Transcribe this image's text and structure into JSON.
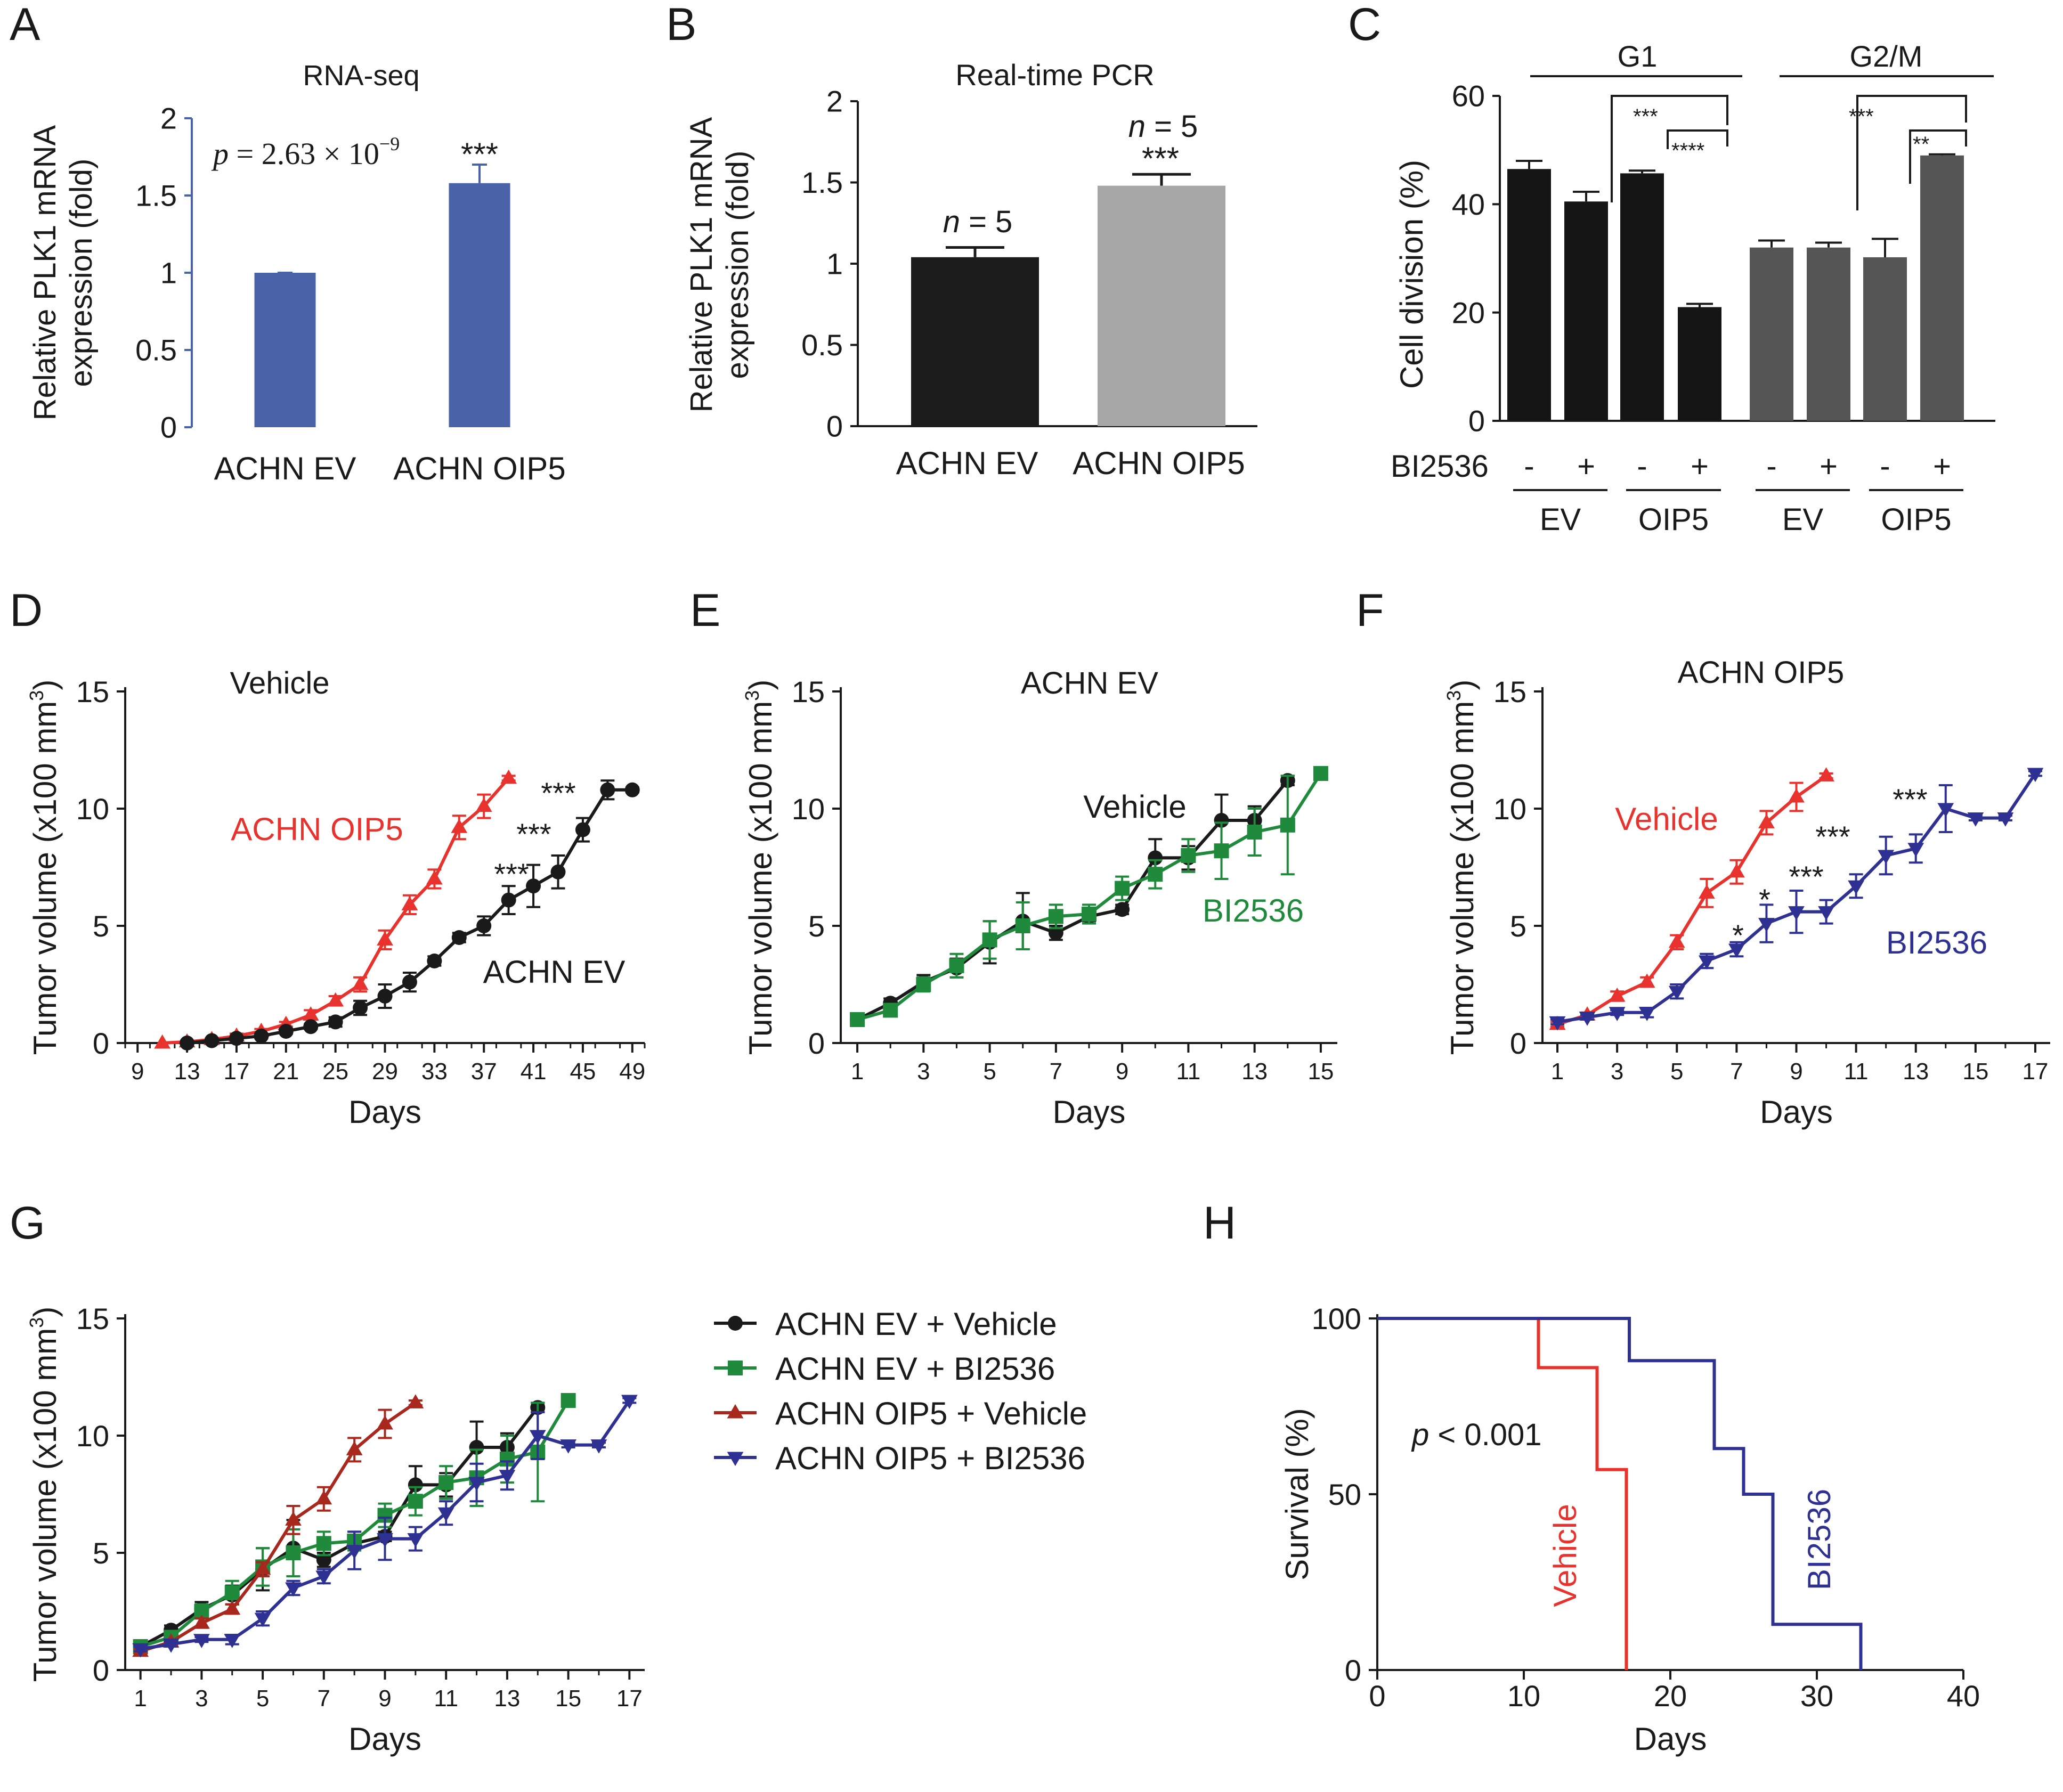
{
  "colors": {
    "blue_bar": "#4a62a8",
    "black_bar": "#1b1b1b",
    "gray_bar": "#a6a6a6",
    "g1_bar": "#151515",
    "g2m_bar": "#555555",
    "red": "#e8322d",
    "black": "#1a1a1a",
    "green": "#1f8a3c",
    "navy": "#2e3192",
    "darkred": "#a8281d",
    "blue_axis": "#4a62a8"
  },
  "chart_data": [
    {
      "panel": "A",
      "type": "bar",
      "title": "RNA-seq",
      "ylabel_line1": "Relative PLK1 mRNA",
      "ylabel_line2": "expression (fold)",
      "ylim": [
        0,
        2
      ],
      "yticks": [
        "0",
        "0.5",
        "1",
        "1.5",
        "2"
      ],
      "ytick_values": [
        0,
        0.5,
        1,
        1.5,
        2
      ],
      "categories": [
        "ACHN EV",
        "ACHN OIP5"
      ],
      "values": [
        1.0,
        1.58
      ],
      "errors": [
        0,
        0.12
      ],
      "annotations": {
        "stat": "***",
        "p_label": "p",
        "p_expr": " = 2.63 × 10",
        "p_exp": "−9"
      }
    },
    {
      "panel": "B",
      "type": "bar",
      "title": "Real-time PCR",
      "ylabel_line1": "Relative PLK1 mRNA",
      "ylabel_line2": "expression (fold)",
      "ylim": [
        0,
        2
      ],
      "yticks": [
        "0",
        "0.5",
        "1",
        "1.5",
        "2"
      ],
      "ytick_values": [
        0,
        0.5,
        1,
        1.5,
        2
      ],
      "categories": [
        "ACHN EV",
        "ACHN OIP5"
      ],
      "values": [
        1.04,
        1.48
      ],
      "errors": [
        0.06,
        0.07
      ],
      "annotations": {
        "n_label": "n",
        "n_expr": " = 5",
        "stat": "***"
      }
    },
    {
      "panel": "C",
      "type": "bar",
      "ylabel": "Cell division (%)",
      "ylim": [
        0,
        60
      ],
      "yticks": [
        "0",
        "20",
        "40",
        "60"
      ],
      "ytick_values": [
        0,
        20,
        40,
        60
      ],
      "groups": [
        "G1",
        "G2/M"
      ],
      "treatment_label": "BI2536",
      "signs": [
        "-",
        "+",
        "-",
        "+",
        "-",
        "+",
        "-",
        "+"
      ],
      "cell_lines": [
        "EV",
        "OIP5",
        "EV",
        "OIP5"
      ],
      "values": [
        46.5,
        40.5,
        45.7,
        21.0,
        32.0,
        32.0,
        30.2,
        49.0
      ],
      "errors": [
        1.5,
        1.8,
        0.5,
        0.6,
        1.3,
        0.9,
        3.4,
        0.2
      ],
      "sig_brackets": [
        "***",
        "****",
        "***",
        "**"
      ]
    },
    {
      "panel": "D",
      "type": "line",
      "title": "Vehicle",
      "xlabel": "Days",
      "ylabel": "Tumor volume (x100 mm",
      "ylabel_sup": "3",
      "ylabel_end": ")",
      "xlim": [
        8,
        50
      ],
      "ylim": [
        0,
        15
      ],
      "xticks": [
        "9",
        "13",
        "17",
        "21",
        "25",
        "29",
        "33",
        "37",
        "41",
        "45",
        "49"
      ],
      "xtick_values": [
        9,
        13,
        17,
        21,
        25,
        29,
        33,
        37,
        41,
        45,
        49
      ],
      "yticks": [
        "0",
        "5",
        "10",
        "15"
      ],
      "ytick_values": [
        0,
        5,
        10,
        15
      ],
      "series": [
        {
          "name": "ACHN OIP5",
          "color": "#e8322d",
          "marker": "triangle",
          "x": [
            11,
            13,
            15,
            17,
            19,
            21,
            23,
            25,
            27,
            29,
            31,
            33,
            35,
            37,
            39
          ],
          "y": [
            0.0,
            0.05,
            0.15,
            0.3,
            0.5,
            0.8,
            1.2,
            1.8,
            2.5,
            4.4,
            5.9,
            7.0,
            9.2,
            10.1,
            11.3
          ],
          "err": [
            0,
            0.05,
            0.05,
            0.1,
            0.1,
            0.1,
            0.2,
            0.2,
            0.3,
            0.4,
            0.4,
            0.4,
            0.5,
            0.5,
            0.1
          ]
        },
        {
          "name": "ACHN EV",
          "color": "#1a1a1a",
          "marker": "circle",
          "x": [
            13,
            15,
            17,
            19,
            21,
            23,
            25,
            27,
            29,
            31,
            33,
            35,
            37,
            39,
            41,
            43,
            45,
            47,
            49
          ],
          "y": [
            0.0,
            0.1,
            0.2,
            0.3,
            0.5,
            0.7,
            0.9,
            1.5,
            2.0,
            2.6,
            3.5,
            4.5,
            5.0,
            6.1,
            6.7,
            7.3,
            9.1,
            10.8,
            10.8
          ],
          "err": [
            0,
            0.05,
            0.05,
            0.1,
            0.1,
            0.1,
            0.2,
            0.3,
            0.5,
            0.4,
            0.2,
            0.2,
            0.4,
            0.6,
            0.9,
            0.7,
            0.5,
            0.4,
            0.1
          ]
        }
      ],
      "annotations": [
        "***",
        "***",
        "***"
      ]
    },
    {
      "panel": "E",
      "type": "line",
      "title": "ACHN EV",
      "xlabel": "Days",
      "ylabel": "Tumor volume (x100 mm",
      "ylabel_sup": "3",
      "ylabel_end": ")",
      "xlim": [
        0.5,
        15.5
      ],
      "ylim": [
        0,
        15
      ],
      "xticks": [
        "1",
        "3",
        "5",
        "7",
        "9",
        "11",
        "13",
        "15"
      ],
      "xtick_values": [
        1,
        3,
        5,
        7,
        9,
        11,
        13,
        15
      ],
      "yticks": [
        "0",
        "5",
        "10",
        "15"
      ],
      "ytick_values": [
        0,
        5,
        10,
        15
      ],
      "series": [
        {
          "name": "Vehicle",
          "color": "#1a1a1a",
          "marker": "circle",
          "x": [
            1,
            2,
            3,
            4,
            5,
            6,
            7,
            8,
            9,
            10,
            11,
            12,
            13,
            14
          ],
          "y": [
            1.0,
            1.7,
            2.6,
            3.2,
            4.3,
            5.2,
            4.7,
            5.4,
            5.7,
            7.9,
            7.9,
            9.5,
            9.5,
            11.2
          ],
          "err": [
            0.1,
            0.2,
            0.3,
            0.4,
            0.9,
            1.2,
            0.3,
            0.2,
            0.2,
            0.8,
            0.5,
            1.1,
            0.6,
            0.2
          ]
        },
        {
          "name": "BI2536",
          "color": "#1f8a3c",
          "marker": "square",
          "x": [
            1,
            2,
            3,
            4,
            5,
            6,
            7,
            8,
            9,
            10,
            11,
            12,
            13,
            14,
            15
          ],
          "y": [
            1.0,
            1.4,
            2.5,
            3.3,
            4.4,
            5.0,
            5.4,
            5.5,
            6.6,
            7.2,
            8.0,
            8.2,
            9.0,
            9.3,
            11.5
          ],
          "err": [
            0.1,
            0.2,
            0.3,
            0.5,
            0.8,
            1.0,
            0.5,
            0.4,
            0.5,
            0.6,
            0.7,
            1.2,
            1.0,
            2.1,
            0.2
          ]
        }
      ]
    },
    {
      "panel": "F",
      "type": "line",
      "title": "ACHN OIP5",
      "xlabel": "Days",
      "ylabel": "Tumor volume (x100 mm",
      "ylabel_sup": "3",
      "ylabel_end": ")",
      "xlim": [
        0.5,
        17.5
      ],
      "ylim": [
        0,
        15
      ],
      "xticks": [
        "1",
        "3",
        "5",
        "7",
        "9",
        "11",
        "13",
        "15",
        "17"
      ],
      "xtick_values": [
        1,
        3,
        5,
        7,
        9,
        11,
        13,
        15,
        17
      ],
      "yticks": [
        "0",
        "5",
        "10",
        "15"
      ],
      "ytick_values": [
        0,
        5,
        10,
        15
      ],
      "series": [
        {
          "name": "Vehicle",
          "color": "#e8322d",
          "marker": "triangle",
          "x": [
            1,
            2,
            3,
            4,
            5,
            6,
            7,
            8,
            9,
            10
          ],
          "y": [
            0.8,
            1.2,
            2.0,
            2.6,
            4.3,
            6.4,
            7.3,
            9.4,
            10.5,
            11.4
          ],
          "err": [
            0.1,
            0.1,
            0.2,
            0.2,
            0.3,
            0.6,
            0.5,
            0.5,
            0.6,
            0.1
          ]
        },
        {
          "name": "BI2536",
          "color": "#2e3192",
          "marker": "invtriangle",
          "x": [
            1,
            2,
            3,
            4,
            5,
            6,
            7,
            8,
            9,
            10,
            11,
            12,
            13,
            14,
            15,
            16,
            17
          ],
          "y": [
            0.9,
            1.1,
            1.3,
            1.3,
            2.2,
            3.5,
            4.0,
            5.1,
            5.6,
            5.6,
            6.7,
            8.0,
            8.3,
            10.0,
            9.6,
            9.6,
            11.5
          ],
          "err": [
            0.1,
            0.1,
            0.1,
            0.2,
            0.3,
            0.3,
            0.3,
            0.8,
            0.9,
            0.5,
            0.5,
            0.8,
            0.6,
            1.0,
            0.1,
            0.1,
            0.1
          ]
        }
      ],
      "annotations": [
        "***",
        "***",
        "***",
        "*",
        "*"
      ]
    },
    {
      "panel": "G",
      "type": "line",
      "xlabel": "Days",
      "ylabel": "Tumor volume (x100 mm",
      "ylabel_sup": "3",
      "ylabel_end": ")",
      "xlim": [
        0.5,
        17.5
      ],
      "ylim": [
        0,
        15
      ],
      "xticks": [
        "1",
        "3",
        "5",
        "7",
        "9",
        "11",
        "13",
        "15",
        "17"
      ],
      "xtick_values": [
        1,
        3,
        5,
        7,
        9,
        11,
        13,
        15,
        17
      ],
      "yticks": [
        "0",
        "5",
        "10",
        "15"
      ],
      "ytick_values": [
        0,
        5,
        10,
        15
      ],
      "series": [
        {
          "name": "ACHN EV + Vehicle",
          "color": "#1a1a1a",
          "marker": "circle",
          "x": [
            1,
            2,
            3,
            4,
            5,
            6,
            7,
            8,
            9,
            10,
            11,
            12,
            13,
            14
          ],
          "y": [
            1.0,
            1.7,
            2.6,
            3.2,
            4.3,
            5.2,
            4.7,
            5.4,
            5.7,
            7.9,
            7.9,
            9.5,
            9.5,
            11.2
          ],
          "err": [
            0.1,
            0.2,
            0.3,
            0.4,
            0.9,
            1.2,
            0.3,
            0.2,
            0.2,
            0.8,
            0.5,
            1.1,
            0.6,
            0.2
          ]
        },
        {
          "name": "ACHN EV + BI2536",
          "color": "#1f8a3c",
          "marker": "square",
          "x": [
            1,
            2,
            3,
            4,
            5,
            6,
            7,
            8,
            9,
            10,
            11,
            12,
            13,
            14,
            15
          ],
          "y": [
            1.0,
            1.4,
            2.5,
            3.3,
            4.4,
            5.0,
            5.4,
            5.5,
            6.6,
            7.2,
            8.0,
            8.2,
            9.0,
            9.3,
            11.5
          ],
          "err": [
            0.1,
            0.2,
            0.3,
            0.5,
            0.8,
            1.0,
            0.5,
            0.4,
            0.5,
            0.6,
            0.7,
            1.2,
            1.0,
            2.1,
            0.2
          ]
        },
        {
          "name": "ACHN OIP5 + Vehicle",
          "color": "#a8281d",
          "marker": "triangle",
          "x": [
            1,
            2,
            3,
            4,
            5,
            6,
            7,
            8,
            9,
            10
          ],
          "y": [
            0.8,
            1.2,
            2.0,
            2.6,
            4.3,
            6.4,
            7.3,
            9.4,
            10.5,
            11.4
          ],
          "err": [
            0.1,
            0.1,
            0.2,
            0.2,
            0.3,
            0.6,
            0.5,
            0.5,
            0.6,
            0.1
          ]
        },
        {
          "name": "ACHN OIP5 + BI2536",
          "color": "#2e3192",
          "marker": "invtriangle",
          "x": [
            1,
            2,
            3,
            4,
            5,
            6,
            7,
            8,
            9,
            10,
            11,
            12,
            13,
            14,
            15,
            16,
            17
          ],
          "y": [
            0.9,
            1.1,
            1.3,
            1.3,
            2.2,
            3.5,
            4.0,
            5.1,
            5.6,
            5.6,
            6.7,
            8.0,
            8.3,
            10.0,
            9.6,
            9.6,
            11.5
          ],
          "err": [
            0.1,
            0.1,
            0.1,
            0.2,
            0.3,
            0.3,
            0.3,
            0.8,
            0.9,
            0.5,
            0.5,
            0.8,
            0.6,
            1.0,
            0.1,
            0.1,
            0.1
          ]
        }
      ]
    },
    {
      "panel": "H",
      "type": "line",
      "subtype": "survival",
      "xlabel": "Days",
      "ylabel": "Survival (%)",
      "xlim": [
        0,
        40
      ],
      "ylim": [
        0,
        100
      ],
      "xticks": [
        "0",
        "10",
        "20",
        "30",
        "40"
      ],
      "xtick_values": [
        0,
        10,
        20,
        30,
        40
      ],
      "yticks": [
        "0",
        "50",
        "100"
      ],
      "ytick_values": [
        0,
        50,
        100
      ],
      "series": [
        {
          "name": "Vehicle",
          "color": "#e8322d",
          "steps": [
            [
              0,
              100
            ],
            [
              11,
              100
            ],
            [
              11,
              86
            ],
            [
              15,
              86
            ],
            [
              15,
              57
            ],
            [
              17,
              57
            ],
            [
              17,
              0
            ]
          ]
        },
        {
          "name": "BI2536",
          "color": "#2e3192",
          "steps": [
            [
              0,
              100
            ],
            [
              17,
              100
            ],
            [
              17,
              100
            ],
            [
              17.2,
              100
            ],
            [
              17.2,
              88
            ],
            [
              23,
              88
            ],
            [
              23,
              63
            ],
            [
              25,
              63
            ],
            [
              25,
              50
            ],
            [
              27,
              50
            ],
            [
              27,
              13
            ],
            [
              33,
              13
            ],
            [
              33,
              0
            ]
          ]
        }
      ],
      "annotations": {
        "p_label": "p",
        "p_expr": " < 0.001"
      }
    }
  ]
}
